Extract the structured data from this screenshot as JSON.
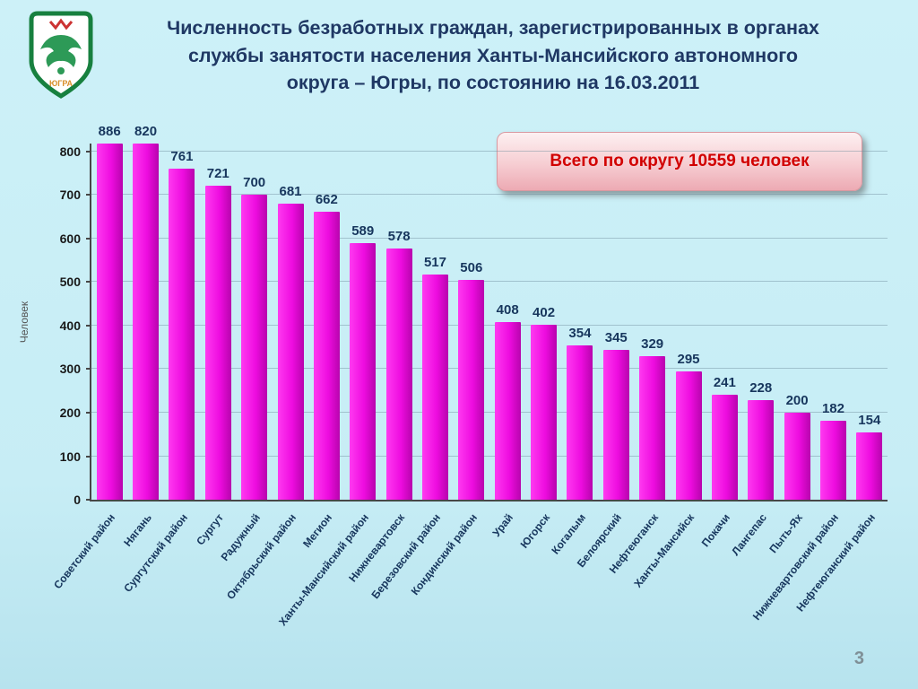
{
  "slide": {
    "title_lines": [
      "Численность безработных граждан, зарегистрированных в органах",
      "службы занятости населения Ханты-Мансийского автономного",
      "округа – Югры, по состоянию на 16.03.2011"
    ],
    "callout": "Всего по округу 10559 человек",
    "callout_text_color": "#d10000",
    "page_number": "3",
    "logo": "yugra-coat-of-arms",
    "background_color": "#c7edf5",
    "title_color": "#1f3864"
  },
  "chart_data": {
    "type": "bar",
    "title": "",
    "xlabel": "",
    "ylabel": "Человек",
    "ylim": [
      0,
      800
    ],
    "yticks": [
      0,
      100,
      200,
      300,
      400,
      500,
      600,
      700,
      800
    ],
    "grid": true,
    "legend": "none",
    "bar_color": "#ee0ce0",
    "categories": [
      "Советский район",
      "Нягань",
      "Сургутский район",
      "Сургут",
      "Радужный",
      "Октябрьский район",
      "Мегион",
      "Ханты-Мансийский район",
      "Нижневартовск",
      "Березовский район",
      "Кондинский район",
      "Урай",
      "Югорск",
      "Когалым",
      "Белоярский",
      "Нефтеюганск",
      "Ханты-Мансийск",
      "Покачи",
      "Лангепас",
      "Пыть-Ях",
      "Нижневартовский район",
      "Нефтеюганский район"
    ],
    "values": [
      886,
      820,
      761,
      721,
      700,
      681,
      662,
      589,
      578,
      517,
      506,
      408,
      402,
      354,
      345,
      329,
      295,
      241,
      228,
      200,
      182,
      154
    ]
  }
}
